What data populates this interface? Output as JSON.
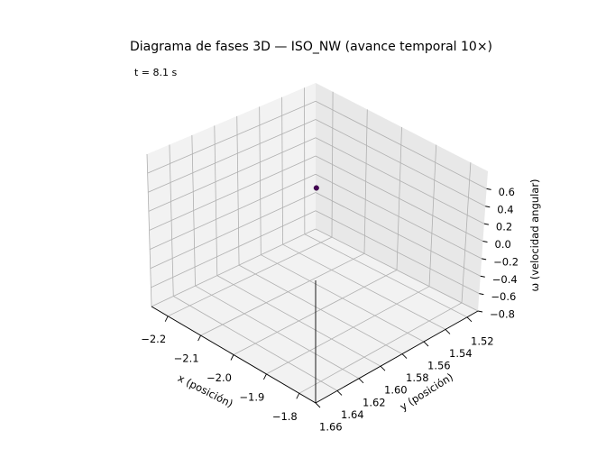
{
  "chart_data": {
    "type": "scatter",
    "projection": "3d",
    "title": "Diagrama de fases 3D — ISO_NW (avance temporal 10×)",
    "annotation": "t = 8.1 s",
    "xlabel": "x (posición)",
    "ylabel": "y (posición)",
    "zlabel": "ω (velocidad angular)",
    "xlim": [
      -2.25,
      -1.75
    ],
    "ylim": [
      1.51,
      1.66
    ],
    "zlim": [
      -0.8,
      0.8
    ],
    "grid": true,
    "x_ticks": [
      {
        "value": -1.8,
        "label": "−1.8"
      },
      {
        "value": -1.9,
        "label": "−1.9"
      },
      {
        "value": -2.0,
        "label": "−2.0"
      },
      {
        "value": -2.1,
        "label": "−2.1"
      },
      {
        "value": -2.2,
        "label": "−2.2"
      }
    ],
    "y_ticks": [
      {
        "value": 1.52,
        "label": "1.52"
      },
      {
        "value": 1.54,
        "label": "1.54"
      },
      {
        "value": 1.56,
        "label": "1.56"
      },
      {
        "value": 1.58,
        "label": "1.58"
      },
      {
        "value": 1.6,
        "label": "1.60"
      },
      {
        "value": 1.62,
        "label": "1.62"
      },
      {
        "value": 1.64,
        "label": "1.64"
      },
      {
        "value": 1.66,
        "label": "1.66"
      }
    ],
    "z_ticks": [
      {
        "value": 0.6,
        "label": "0.6"
      },
      {
        "value": 0.4,
        "label": "0.4"
      },
      {
        "value": 0.2,
        "label": "0.2"
      },
      {
        "value": 0.0,
        "label": "0.0"
      },
      {
        "value": -0.2,
        "label": "−0.2"
      },
      {
        "value": -0.4,
        "label": "−0.4"
      },
      {
        "value": -0.6,
        "label": "−0.6"
      },
      {
        "value": -0.8,
        "label": "−0.8"
      }
    ],
    "points": [
      {
        "x": -2.0,
        "y": 1.585,
        "z": 0.62,
        "color": "#440154"
      }
    ]
  }
}
